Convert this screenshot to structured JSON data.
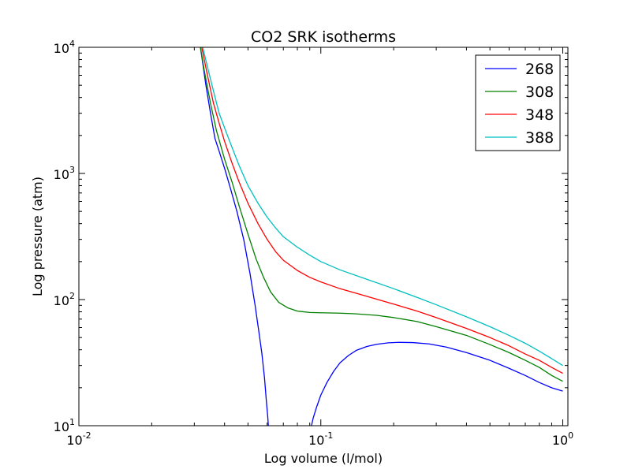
{
  "chart_data": {
    "type": "line",
    "title": "CO2 SRK isotherms",
    "xlabel": "Log volume (l/mol)",
    "ylabel": "Log pressure (atm)",
    "xscale": "log",
    "yscale": "log",
    "xlim": [
      0.01,
      1.05
    ],
    "ylim": [
      10,
      10000
    ],
    "x_ticks": [
      {
        "value": 0.01,
        "base": "10",
        "exp": "-2"
      },
      {
        "value": 0.1,
        "base": "10",
        "exp": "-1"
      },
      {
        "value": 1,
        "base": "10",
        "exp": "0"
      }
    ],
    "y_ticks": [
      {
        "value": 10,
        "base": "10",
        "exp": "1"
      },
      {
        "value": 100,
        "base": "10",
        "exp": "2"
      },
      {
        "value": 1000,
        "base": "10",
        "exp": "3"
      },
      {
        "value": 10000,
        "base": "10",
        "exp": "4"
      }
    ],
    "grid": false,
    "legend_position": "upper right",
    "series": [
      {
        "name": "268",
        "color": "#0000ff",
        "segments": [
          [
            [
              0.0318,
              10000
            ],
            [
              0.0325,
              7500
            ],
            [
              0.0335,
              5000
            ],
            [
              0.035,
              3000
            ],
            [
              0.0365,
              1900
            ],
            [
              0.038,
              1500
            ],
            [
              0.04,
              1100
            ],
            [
              0.042,
              800
            ],
            [
              0.045,
              500
            ],
            [
              0.048,
              300
            ],
            [
              0.051,
              160
            ],
            [
              0.0535,
              90
            ],
            [
              0.0555,
              55
            ],
            [
              0.057,
              38
            ],
            [
              0.0585,
              24
            ],
            [
              0.0595,
              16
            ],
            [
              0.0603,
              12
            ],
            [
              0.0607,
              10
            ]
          ],
          [
            [
              0.0915,
              10
            ],
            [
              0.093,
              11.5
            ],
            [
              0.096,
              14
            ],
            [
              0.1,
              17.5
            ],
            [
              0.106,
              22
            ],
            [
              0.113,
              27
            ],
            [
              0.12,
              31.5
            ],
            [
              0.13,
              36
            ],
            [
              0.14,
              39.5
            ],
            [
              0.155,
              42.5
            ],
            [
              0.17,
              44.2
            ],
            [
              0.19,
              45.4
            ],
            [
              0.21,
              45.8
            ],
            [
              0.24,
              45.6
            ],
            [
              0.28,
              44.5
            ],
            [
              0.33,
              42
            ],
            [
              0.4,
              38
            ],
            [
              0.5,
              33
            ],
            [
              0.6,
              28.5
            ],
            [
              0.7,
              25
            ],
            [
              0.8,
              22
            ],
            [
              0.9,
              20
            ],
            [
              1.0,
              18.8
            ]
          ]
        ]
      },
      {
        "name": "308",
        "color": "#008000",
        "segments": [
          [
            [
              0.0318,
              10000
            ],
            [
              0.033,
              6500
            ],
            [
              0.035,
              3600
            ],
            [
              0.037,
              2200
            ],
            [
              0.04,
              1300
            ],
            [
              0.043,
              850
            ],
            [
              0.046,
              550
            ],
            [
              0.05,
              330
            ],
            [
              0.054,
              210
            ],
            [
              0.058,
              150
            ],
            [
              0.062,
              115
            ],
            [
              0.067,
              95
            ],
            [
              0.073,
              86
            ],
            [
              0.08,
              81
            ],
            [
              0.09,
              79
            ],
            [
              0.1,
              78.6
            ],
            [
              0.12,
              78
            ],
            [
              0.14,
              77
            ],
            [
              0.17,
              75
            ],
            [
              0.2,
              72
            ],
            [
              0.25,
              67
            ],
            [
              0.3,
              61
            ],
            [
              0.4,
              52
            ],
            [
              0.5,
              44
            ],
            [
              0.6,
              38
            ],
            [
              0.7,
              33
            ],
            [
              0.8,
              29
            ],
            [
              0.9,
              25
            ],
            [
              1.0,
              22.5
            ]
          ]
        ]
      },
      {
        "name": "348",
        "color": "#ff0000",
        "segments": [
          [
            [
              0.0322,
              10000
            ],
            [
              0.034,
              6000
            ],
            [
              0.036,
              3600
            ],
            [
              0.038,
              2500
            ],
            [
              0.04,
              1800
            ],
            [
              0.043,
              1200
            ],
            [
              0.046,
              850
            ],
            [
              0.05,
              580
            ],
            [
              0.055,
              400
            ],
            [
              0.06,
              300
            ],
            [
              0.065,
              240
            ],
            [
              0.07,
              205
            ],
            [
              0.08,
              170
            ],
            [
              0.09,
              150
            ],
            [
              0.1,
              138
            ],
            [
              0.12,
              122
            ],
            [
              0.15,
              108
            ],
            [
              0.2,
              92
            ],
            [
              0.25,
              81
            ],
            [
              0.3,
              72
            ],
            [
              0.4,
              59
            ],
            [
              0.5,
              50
            ],
            [
              0.6,
              43
            ],
            [
              0.7,
              37
            ],
            [
              0.8,
              33
            ],
            [
              0.9,
              29
            ],
            [
              1.0,
              26
            ]
          ]
        ]
      },
      {
        "name": "388",
        "color": "#00bfbf",
        "segments": [
          [
            [
              0.0325,
              10000
            ],
            [
              0.034,
              7000
            ],
            [
              0.036,
              4500
            ],
            [
              0.038,
              3000
            ],
            [
              0.04,
              2300
            ],
            [
              0.043,
              1600
            ],
            [
              0.046,
              1150
            ],
            [
              0.05,
              800
            ],
            [
              0.055,
              580
            ],
            [
              0.06,
              450
            ],
            [
              0.065,
              370
            ],
            [
              0.07,
              315
            ],
            [
              0.08,
              260
            ],
            [
              0.09,
              225
            ],
            [
              0.1,
              200
            ],
            [
              0.12,
              172
            ],
            [
              0.15,
              148
            ],
            [
              0.2,
              122
            ],
            [
              0.25,
              104
            ],
            [
              0.3,
              91
            ],
            [
              0.4,
              73
            ],
            [
              0.5,
              61
            ],
            [
              0.6,
              52
            ],
            [
              0.7,
              45
            ],
            [
              0.8,
              39
            ],
            [
              0.9,
              34
            ],
            [
              1.0,
              30
            ]
          ]
        ]
      }
    ]
  }
}
